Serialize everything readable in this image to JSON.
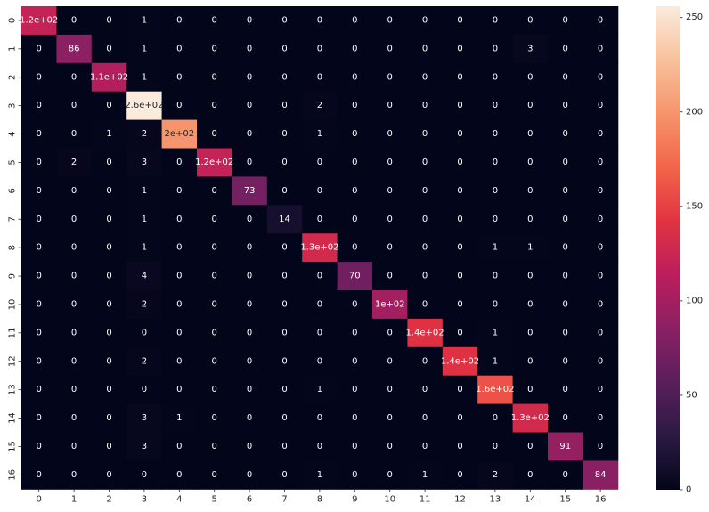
{
  "chart_data": {
    "type": "heatmap",
    "title": "",
    "xlabel": "",
    "ylabel": "",
    "x_categories": [
      "0",
      "1",
      "2",
      "3",
      "4",
      "5",
      "6",
      "7",
      "8",
      "9",
      "10",
      "11",
      "12",
      "13",
      "14",
      "15",
      "16"
    ],
    "y_categories": [
      "0",
      "1",
      "2",
      "3",
      "4",
      "5",
      "6",
      "7",
      "8",
      "9",
      "10",
      "11",
      "12",
      "13",
      "14",
      "15",
      "16"
    ],
    "values": [
      [
        120,
        0,
        0,
        1,
        0,
        0,
        0,
        0,
        0,
        0,
        0,
        0,
        0,
        0,
        0,
        0,
        0
      ],
      [
        0,
        86,
        0,
        1,
        0,
        0,
        0,
        0,
        0,
        0,
        0,
        0,
        0,
        0,
        3,
        0,
        0
      ],
      [
        0,
        0,
        110,
        1,
        0,
        0,
        0,
        0,
        0,
        0,
        0,
        0,
        0,
        0,
        0,
        0,
        0
      ],
      [
        0,
        0,
        0,
        260,
        0,
        0,
        0,
        0,
        2,
        0,
        0,
        0,
        0,
        0,
        0,
        0,
        0
      ],
      [
        0,
        0,
        1,
        2,
        200,
        0,
        0,
        0,
        1,
        0,
        0,
        0,
        0,
        0,
        0,
        0,
        0
      ],
      [
        0,
        2,
        0,
        3,
        0,
        120,
        0,
        0,
        0,
        0,
        0,
        0,
        0,
        0,
        0,
        0,
        0
      ],
      [
        0,
        0,
        0,
        1,
        0,
        0,
        73,
        0,
        0,
        0,
        0,
        0,
        0,
        0,
        0,
        0,
        0
      ],
      [
        0,
        0,
        0,
        1,
        0,
        0,
        0,
        14,
        0,
        0,
        0,
        0,
        0,
        0,
        0,
        0,
        0
      ],
      [
        0,
        0,
        0,
        1,
        0,
        0,
        0,
        0,
        130,
        0,
        0,
        0,
        0,
        1,
        1,
        0,
        0
      ],
      [
        0,
        0,
        0,
        4,
        0,
        0,
        0,
        0,
        0,
        70,
        0,
        0,
        0,
        0,
        0,
        0,
        0
      ],
      [
        0,
        0,
        0,
        2,
        0,
        0,
        0,
        0,
        0,
        0,
        100,
        0,
        0,
        0,
        0,
        0,
        0
      ],
      [
        0,
        0,
        0,
        0,
        0,
        0,
        0,
        0,
        0,
        0,
        0,
        140,
        0,
        1,
        0,
        0,
        0
      ],
      [
        0,
        0,
        0,
        2,
        0,
        0,
        0,
        0,
        0,
        0,
        0,
        0,
        140,
        1,
        0,
        0,
        0
      ],
      [
        0,
        0,
        0,
        0,
        0,
        0,
        0,
        0,
        1,
        0,
        0,
        0,
        0,
        160,
        0,
        0,
        0
      ],
      [
        0,
        0,
        0,
        3,
        1,
        0,
        0,
        0,
        0,
        0,
        0,
        0,
        0,
        0,
        130,
        0,
        0
      ],
      [
        0,
        0,
        0,
        3,
        0,
        0,
        0,
        0,
        0,
        0,
        0,
        0,
        0,
        0,
        0,
        91,
        0
      ],
      [
        0,
        0,
        0,
        0,
        0,
        0,
        0,
        0,
        1,
        0,
        0,
        1,
        0,
        2,
        0,
        0,
        84
      ]
    ],
    "cell_labels": [
      [
        "1.2e+02",
        "0",
        "0",
        "1",
        "0",
        "0",
        "0",
        "0",
        "0",
        "0",
        "0",
        "0",
        "0",
        "0",
        "0",
        "0",
        "0"
      ],
      [
        "0",
        "86",
        "0",
        "1",
        "0",
        "0",
        "0",
        "0",
        "0",
        "0",
        "0",
        "0",
        "0",
        "0",
        "3",
        "0",
        "0"
      ],
      [
        "0",
        "0",
        "1.1e+02",
        "1",
        "0",
        "0",
        "0",
        "0",
        "0",
        "0",
        "0",
        "0",
        "0",
        "0",
        "0",
        "0",
        "0"
      ],
      [
        "0",
        "0",
        "0",
        "2.6e+02",
        "0",
        "0",
        "0",
        "0",
        "2",
        "0",
        "0",
        "0",
        "0",
        "0",
        "0",
        "0",
        "0"
      ],
      [
        "0",
        "0",
        "1",
        "2",
        "2e+02",
        "0",
        "0",
        "0",
        "1",
        "0",
        "0",
        "0",
        "0",
        "0",
        "0",
        "0",
        "0"
      ],
      [
        "0",
        "2",
        "0",
        "3",
        "0",
        "1.2e+02",
        "0",
        "0",
        "0",
        "0",
        "0",
        "0",
        "0",
        "0",
        "0",
        "0",
        "0"
      ],
      [
        "0",
        "0",
        "0",
        "1",
        "0",
        "0",
        "73",
        "0",
        "0",
        "0",
        "0",
        "0",
        "0",
        "0",
        "0",
        "0",
        "0"
      ],
      [
        "0",
        "0",
        "0",
        "1",
        "0",
        "0",
        "0",
        "14",
        "0",
        "0",
        "0",
        "0",
        "0",
        "0",
        "0",
        "0",
        "0"
      ],
      [
        "0",
        "0",
        "0",
        "1",
        "0",
        "0",
        "0",
        "0",
        "1.3e+02",
        "0",
        "0",
        "0",
        "0",
        "1",
        "1",
        "0",
        "0"
      ],
      [
        "0",
        "0",
        "0",
        "4",
        "0",
        "0",
        "0",
        "0",
        "0",
        "70",
        "0",
        "0",
        "0",
        "0",
        "0",
        "0",
        "0"
      ],
      [
        "0",
        "0",
        "0",
        "2",
        "0",
        "0",
        "0",
        "0",
        "0",
        "0",
        "1e+02",
        "0",
        "0",
        "0",
        "0",
        "0",
        "0"
      ],
      [
        "0",
        "0",
        "0",
        "0",
        "0",
        "0",
        "0",
        "0",
        "0",
        "0",
        "0",
        "1.4e+02",
        "0",
        "1",
        "0",
        "0",
        "0"
      ],
      [
        "0",
        "0",
        "0",
        "2",
        "0",
        "0",
        "0",
        "0",
        "0",
        "0",
        "0",
        "0",
        "1.4e+02",
        "1",
        "0",
        "0",
        "0"
      ],
      [
        "0",
        "0",
        "0",
        "0",
        "0",
        "0",
        "0",
        "0",
        "1",
        "0",
        "0",
        "0",
        "0",
        "1.6e+02",
        "0",
        "0",
        "0"
      ],
      [
        "0",
        "0",
        "0",
        "3",
        "1",
        "0",
        "0",
        "0",
        "0",
        "0",
        "0",
        "0",
        "0",
        "0",
        "1.3e+02",
        "0",
        "0"
      ],
      [
        "0",
        "0",
        "0",
        "3",
        "0",
        "0",
        "0",
        "0",
        "0",
        "0",
        "0",
        "0",
        "0",
        "0",
        "0",
        "91",
        "0"
      ],
      [
        "0",
        "0",
        "0",
        "0",
        "0",
        "0",
        "0",
        "0",
        "1",
        "0",
        "0",
        "1",
        "0",
        "2",
        "0",
        "0",
        "84"
      ]
    ],
    "colorbar": {
      "vmin": 0,
      "vmax": 256,
      "ticks": [
        0,
        50,
        100,
        150,
        200,
        250
      ],
      "tick_labels": [
        "0",
        "50",
        "100",
        "150",
        "200",
        "250"
      ],
      "colormap": "rocket",
      "colormap_stops": [
        "#03051a",
        "#2b1a42",
        "#5a1f5b",
        "#8a2063",
        "#bb1e5c",
        "#e13342",
        "#f2654a",
        "#f6946c",
        "#f8c19b",
        "#faebdd"
      ]
    },
    "grid": false,
    "legend": "colorbar-right"
  }
}
